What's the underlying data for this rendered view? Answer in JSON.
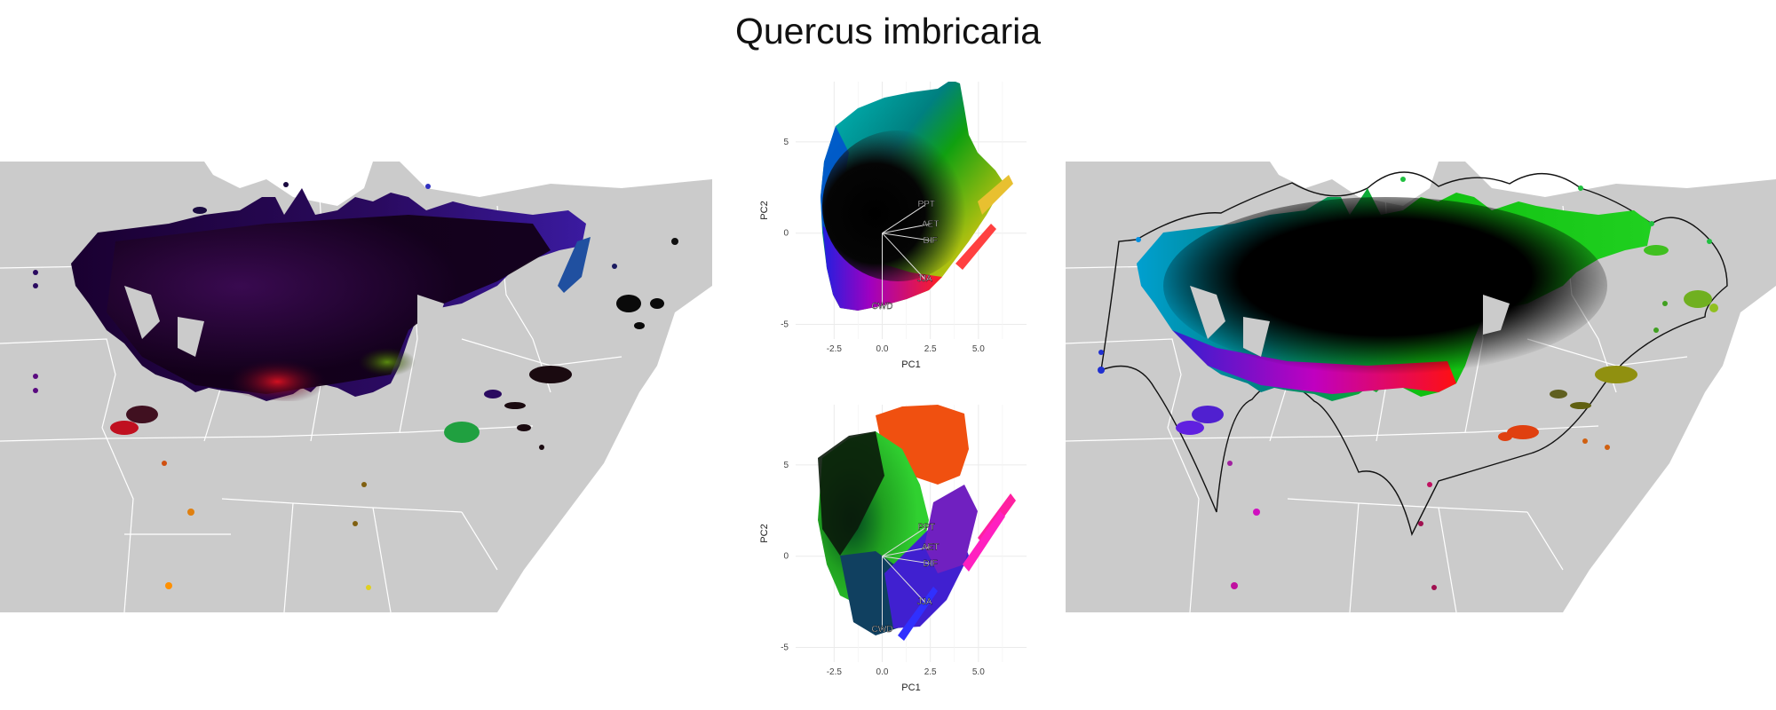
{
  "title": "Quercus imbricaria",
  "colors": {
    "land": "#cbcbcb",
    "border": "#ffffff",
    "background": "#ffffff",
    "grid": "#ebebeb"
  },
  "chart_data": [
    {
      "type": "scatter",
      "title": "",
      "xlabel": "PC1",
      "ylabel": "PC2",
      "xlim": [
        -4.5,
        7.5
      ],
      "ylim": [
        -5.8,
        8.3
      ],
      "xticks": [
        -2.5,
        0.0,
        2.5,
        5.0
      ],
      "yticks": [
        -5,
        0,
        5
      ],
      "xtick_labels": [
        "-2.5",
        "0.0",
        "2.5",
        "5.0"
      ],
      "ytick_labels": [
        "-5",
        "0",
        "5"
      ],
      "grid": true,
      "loadings": [
        {
          "label": "PPT",
          "x": 2.3,
          "y": 1.6
        },
        {
          "label": "AET",
          "x": 2.5,
          "y": 0.5
        },
        {
          "label": "DIF",
          "x": 2.5,
          "y": -0.4
        },
        {
          "label": "JJA",
          "x": 2.2,
          "y": -2.5
        },
        {
          "label": "CWD",
          "x": 0.0,
          "y": -4.0
        }
      ]
    },
    {
      "type": "scatter",
      "title": "",
      "xlabel": "PC1",
      "ylabel": "PC2",
      "xlim": [
        -4.5,
        7.5
      ],
      "ylim": [
        -5.8,
        8.3
      ],
      "xticks": [
        -2.5,
        0.0,
        2.5,
        5.0
      ],
      "yticks": [
        -5,
        0,
        5
      ],
      "xtick_labels": [
        "-2.5",
        "0.0",
        "2.5",
        "5.0"
      ],
      "ytick_labels": [
        "-5",
        "0",
        "5"
      ],
      "grid": true,
      "loadings": [
        {
          "label": "PPT",
          "x": 2.3,
          "y": 1.6
        },
        {
          "label": "AET",
          "x": 2.5,
          "y": 0.5
        },
        {
          "label": "DIF",
          "x": 2.5,
          "y": -0.4
        },
        {
          "label": "JJA",
          "x": 2.2,
          "y": -2.5
        },
        {
          "label": "CWD",
          "x": 0.0,
          "y": -4.0
        }
      ]
    }
  ]
}
